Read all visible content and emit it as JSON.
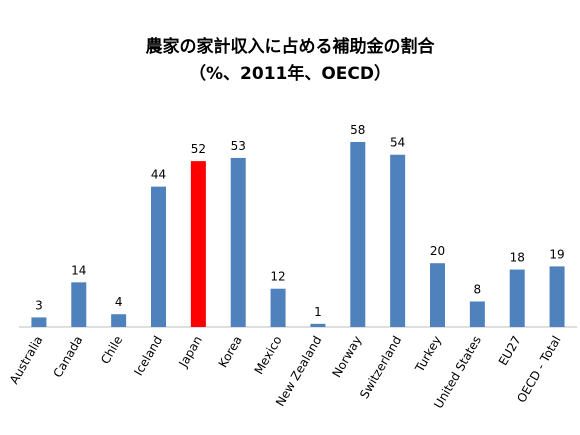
{
  "chart_data": {
    "type": "bar",
    "title": "農家の家計収入に占める補助金の割合",
    "subtitle": "（%、2011年、OECD）",
    "categories": [
      "Australia",
      "Canada",
      "Chile",
      "Iceland",
      "Japan",
      "Korea",
      "Mexico",
      "New Zealand",
      "Norway",
      "Switzerland",
      "Turkey",
      "United States",
      "EU27",
      "OECD - Total"
    ],
    "values": [
      3,
      14,
      4,
      44,
      52,
      53,
      12,
      1,
      58,
      54,
      20,
      8,
      18,
      19
    ],
    "colors": [
      "#4f81bd",
      "#4f81bd",
      "#4f81bd",
      "#4f81bd",
      "#ff0000",
      "#4f81bd",
      "#4f81bd",
      "#4f81bd",
      "#4f81bd",
      "#4f81bd",
      "#4f81bd",
      "#4f81bd",
      "#4f81bd",
      "#4f81bd"
    ]
  }
}
